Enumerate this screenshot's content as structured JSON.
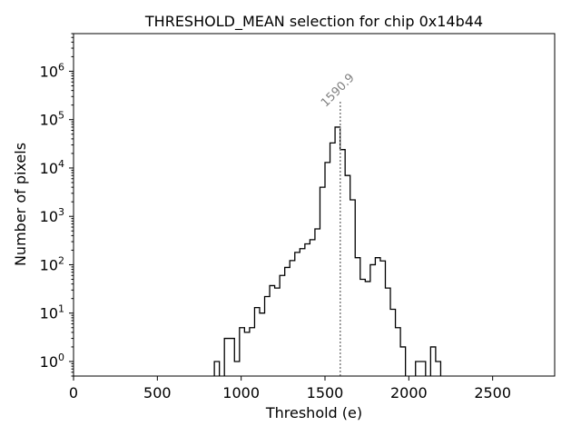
{
  "chart_data": {
    "type": "histogram",
    "title": "THRESHOLD_MEAN selection for chip 0x14b44",
    "xlabel": "Threshold (e)",
    "ylabel": "Number of pixels",
    "x_scale": "linear",
    "y_scale": "log",
    "xlim": [
      0,
      2870
    ],
    "ylim": [
      0.5,
      6000000
    ],
    "x_ticks": [
      0,
      500,
      1000,
      1500,
      2000,
      2500
    ],
    "x_tick_labels": [
      "0",
      "500",
      "1000",
      "1500",
      "2000",
      "2500"
    ],
    "y_ticks": [
      1,
      10,
      100,
      1000,
      10000,
      100000,
      1000000
    ],
    "y_tick_labels": [
      {
        "base": "10",
        "exp": "0"
      },
      {
        "base": "10",
        "exp": "1"
      },
      {
        "base": "10",
        "exp": "2"
      },
      {
        "base": "10",
        "exp": "3"
      },
      {
        "base": "10",
        "exp": "4"
      },
      {
        "base": "10",
        "exp": "5"
      },
      {
        "base": "10",
        "exp": "6"
      }
    ],
    "bin_width": 30,
    "bins_start": 840,
    "counts": [
      1,
      0,
      3,
      3,
      1,
      5,
      4,
      5,
      13,
      10,
      22,
      37,
      33,
      60,
      88,
      122,
      180,
      215,
      270,
      330,
      550,
      4000,
      13000,
      33000,
      70000,
      24000,
      7000,
      2200,
      140,
      50,
      45,
      100,
      140,
      120,
      33,
      12,
      5,
      2,
      0,
      0,
      1,
      1,
      0,
      2,
      1
    ],
    "series_color": "#000000",
    "threshold_line": {
      "value": 1590.9,
      "label": "1590.9",
      "color": "#808080",
      "style": "dotted"
    }
  }
}
